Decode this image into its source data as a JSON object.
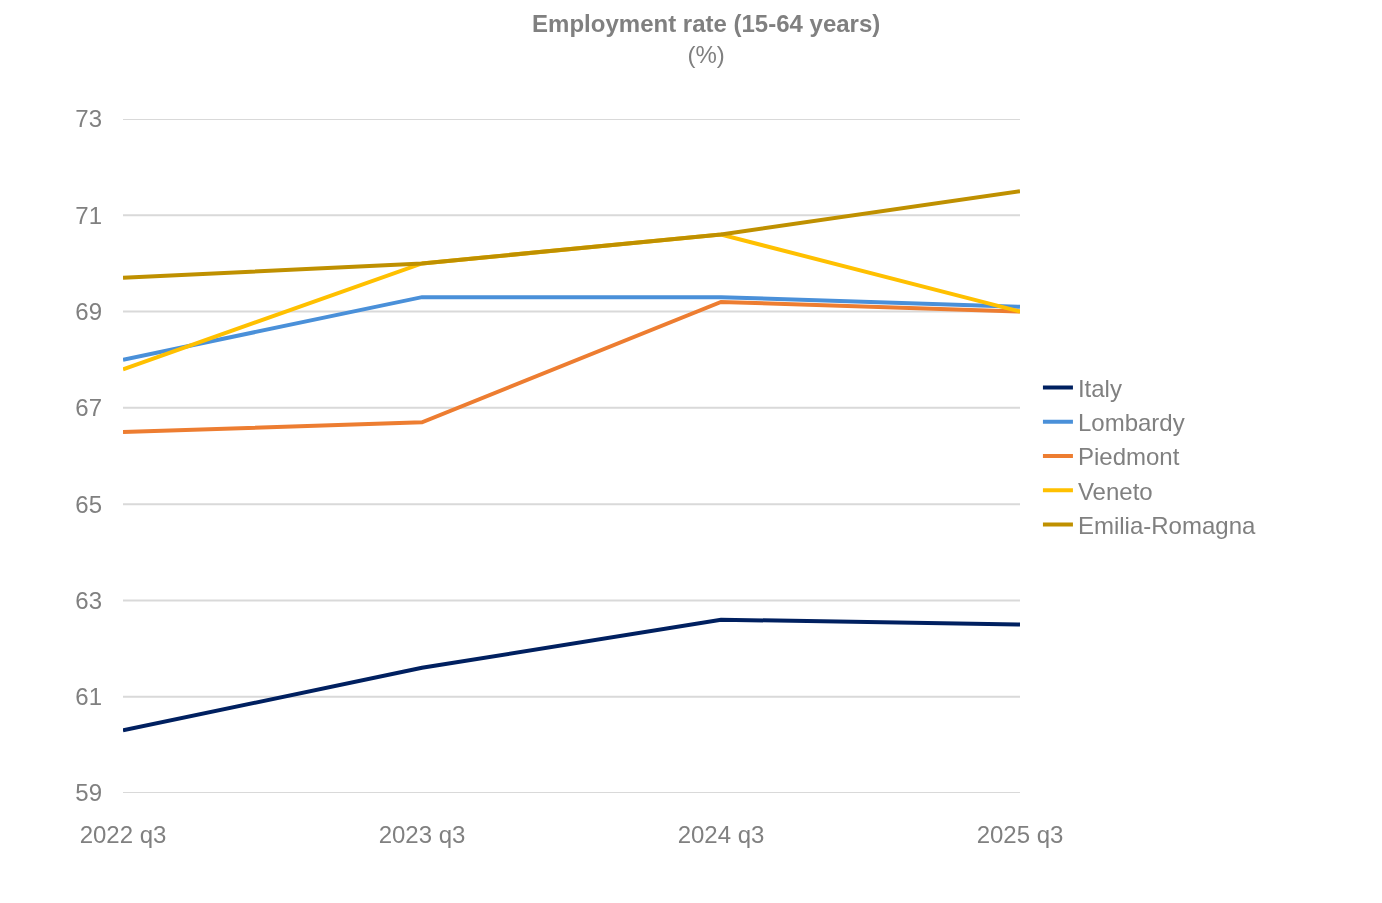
{
  "chart_data": {
    "type": "line",
    "title": "Employment rate (15-64 years)",
    "subtitle": "(%)",
    "categories": [
      "2022 q3",
      "2023 q3",
      "2024 q3",
      "2025 q3"
    ],
    "series": [
      {
        "name": "Italy",
        "color": "#002060",
        "values": [
          60.3,
          61.6,
          62.6,
          62.5
        ]
      },
      {
        "name": "Lombardy",
        "color": "#4a90d9",
        "values": [
          68.0,
          69.3,
          69.3,
          69.1
        ]
      },
      {
        "name": "Piedmont",
        "color": "#ed7d31",
        "values": [
          66.5,
          66.7,
          69.2,
          69.0
        ]
      },
      {
        "name": "Veneto",
        "color": "#ffc000",
        "values": [
          67.8,
          70.0,
          70.6,
          69.0
        ]
      },
      {
        "name": "Emilia-Romagna",
        "color": "#bf9000",
        "values": [
          69.7,
          70.0,
          70.6,
          71.5
        ]
      }
    ],
    "ylim": [
      59,
      73
    ],
    "yticks": [
      59,
      61,
      63,
      65,
      67,
      69,
      71,
      73
    ],
    "grid": "y",
    "legend": "right",
    "marker": "none",
    "line_style": "solid"
  }
}
